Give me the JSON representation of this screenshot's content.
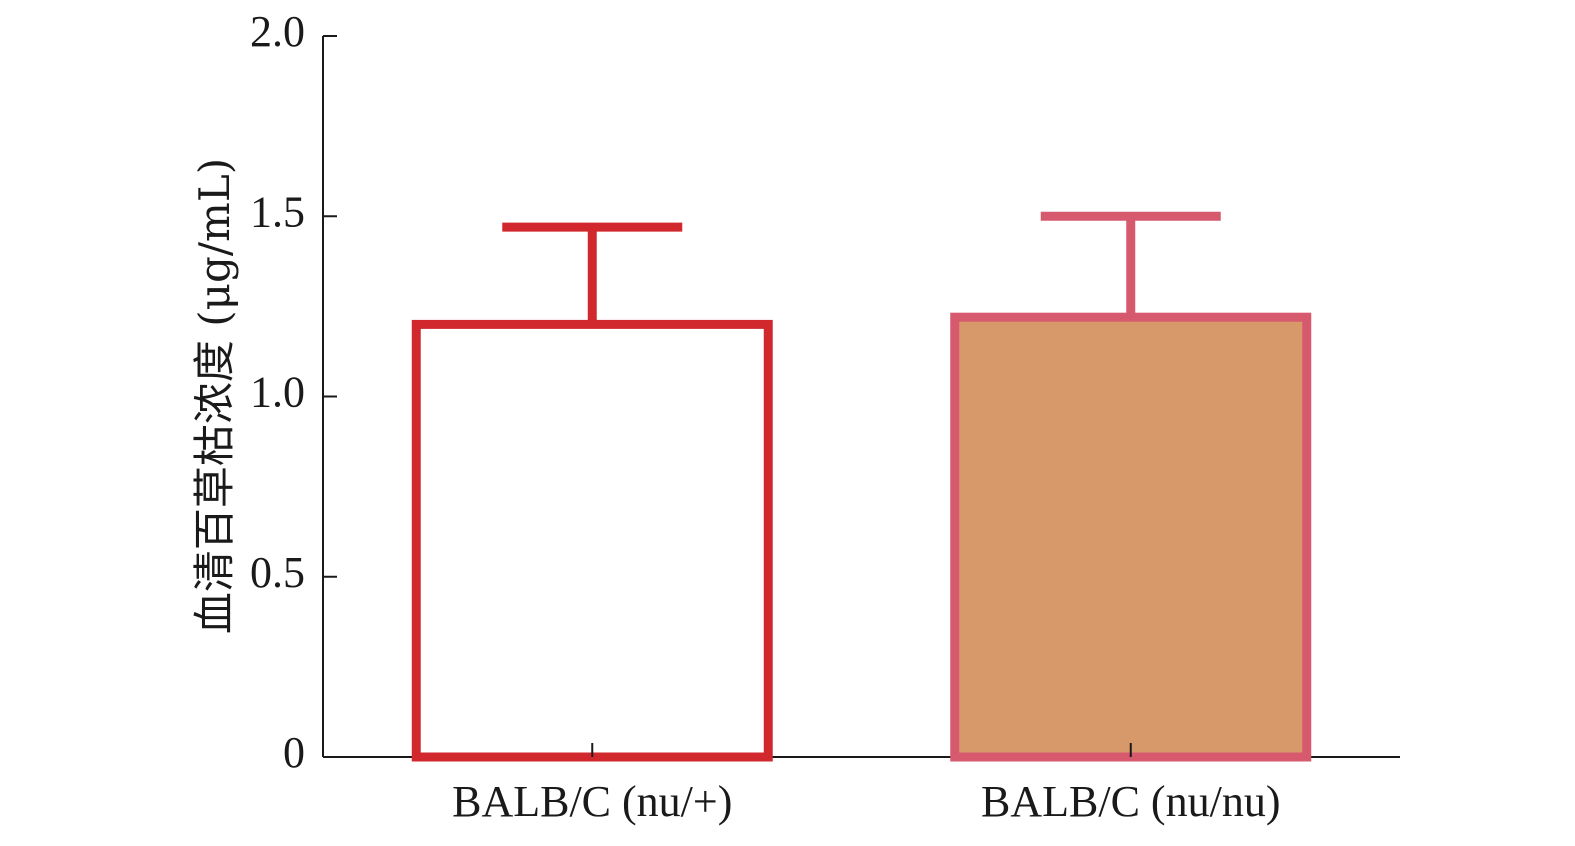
{
  "chart_data": {
    "type": "bar",
    "title": "",
    "xlabel": "",
    "ylabel": "血清百草枯浓度 (μg/mL)",
    "ylim": [
      0,
      2.0
    ],
    "yticks": [
      {
        "value": 0,
        "label": "0"
      },
      {
        "value": 0.5,
        "label": "0.5"
      },
      {
        "value": 1.0,
        "label": "1.0"
      },
      {
        "value": 1.5,
        "label": "1.5"
      },
      {
        "value": 2.0,
        "label": "2.0"
      }
    ],
    "categories": [
      "BALB/C (nu/+)",
      "BALB/C (nu/nu)"
    ],
    "values": [
      1.2,
      1.22
    ],
    "error_upper": [
      1.47,
      1.5
    ],
    "bar_styles": [
      {
        "fill": "#ffffff",
        "stroke": "#d0282d"
      },
      {
        "fill": "#d8996a",
        "stroke": "#d6596e"
      }
    ],
    "grid": false,
    "legend": "none"
  }
}
